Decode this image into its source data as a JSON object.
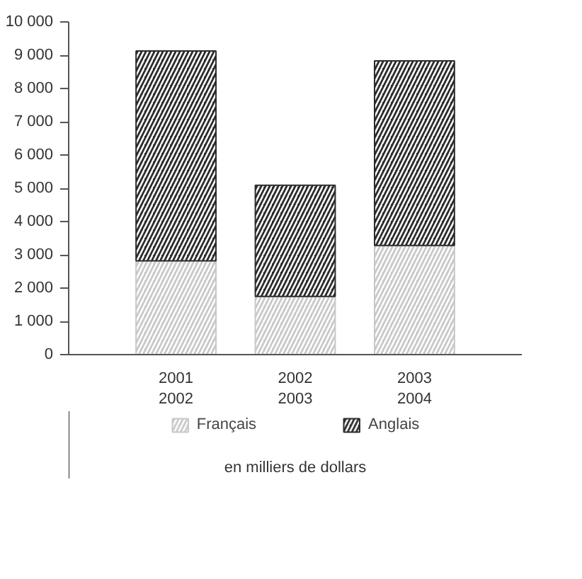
{
  "chart_data": {
    "type": "bar",
    "stacked": true,
    "categories": [
      "2001\n2002",
      "2002\n2003",
      "2003\n2004"
    ],
    "series": [
      {
        "name": "Français",
        "color": "#c8c8c8",
        "values": [
          2820,
          1750,
          3280
        ]
      },
      {
        "name": "Anglais",
        "color": "#2b2b2b",
        "values": [
          6310,
          3340,
          5550
        ]
      }
    ],
    "ylim": [
      0,
      10000
    ],
    "yticks": [
      0,
      {
        "value": 1000,
        "label": "1 000"
      },
      {
        "value": 2000,
        "label": "2 000"
      },
      {
        "value": 3000,
        "label": "3 000"
      },
      {
        "value": 4000,
        "label": "4 000"
      },
      {
        "value": 5000,
        "label": "5 000"
      },
      {
        "value": 6000,
        "label": "6 000"
      },
      {
        "value": 7000,
        "label": "7 000"
      },
      {
        "value": 8000,
        "label": "8 000"
      },
      {
        "value": 9000,
        "label": "9 000"
      },
      {
        "value": 10000,
        "label": "10 000"
      }
    ],
    "grid": false,
    "legend": "bottom",
    "annotations": [
      "en milliers de dollars"
    ]
  }
}
